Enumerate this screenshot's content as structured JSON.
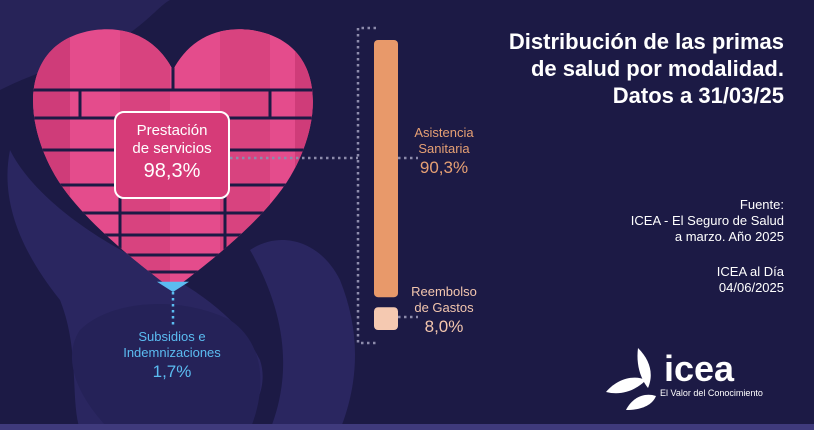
{
  "title": "Distribución de las primas de salud por modalidad. Datos a 31/03/25",
  "source_label": "Fuente:",
  "source_line1": "ICEA - El Seguro de Salud",
  "source_line2": "a marzo. Año 2025",
  "date_line1": "ICEA al Día",
  "date_line2": "04/06/2025",
  "logo": {
    "name": "icea",
    "tagline": "El Valor del Conocimiento"
  },
  "colors": {
    "background": "#1c1a45",
    "prestacion": "#d63b78",
    "asistencia": "#e8996a",
    "reembolso": "#f5c9b1",
    "subsidios": "#5bbcf1"
  },
  "chart_data": [
    {
      "type": "pie",
      "categories": [
        "Prestación de servicios",
        "Subsidios e Indemnizaciones"
      ],
      "values": [
        98.3,
        1.7
      ],
      "labels": [
        "98,3%",
        "1,7%"
      ],
      "label_lines": [
        [
          "Prestación",
          "de servicios"
        ],
        [
          "Subsidios e",
          "Indemnizaciones"
        ]
      ]
    },
    {
      "type": "bar",
      "categories": [
        "Asistencia Sanitaria",
        "Reembolso de Gastos"
      ],
      "values": [
        90.3,
        8.0
      ],
      "labels": [
        "90,3%",
        "8,0%"
      ],
      "label_lines": [
        [
          "Asistencia",
          "Sanitaria"
        ],
        [
          "Reembolso",
          "de Gastos"
        ]
      ]
    }
  ]
}
